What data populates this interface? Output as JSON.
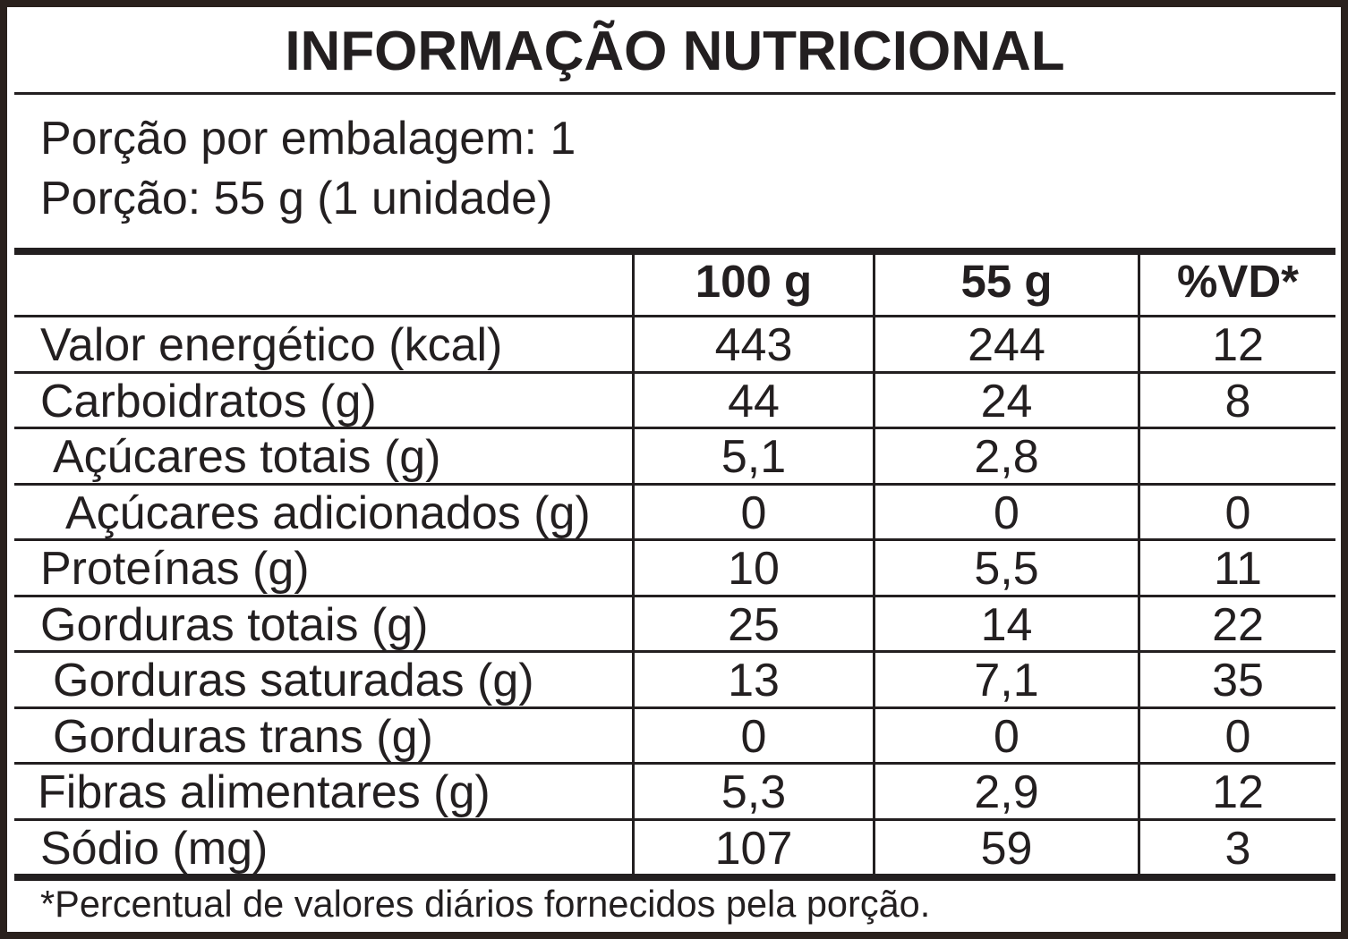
{
  "title": "INFORMAÇÃO NUTRICIONAL",
  "serving": {
    "servings_per_package": "Porção por embalagem: 1",
    "serving_size": "Porção: 55 g (1 unidade)"
  },
  "table": {
    "headers": {
      "per_100g": "100 g",
      "per_serving": "55 g",
      "daily_value": "%VD*"
    },
    "rows": [
      {
        "name": "Valor energético (kcal)",
        "per_100g": "443",
        "per_serving": "244",
        "daily_value": "12"
      },
      {
        "name": "Carboidratos (g)",
        "per_100g": "44",
        "per_serving": "24",
        "daily_value": "8"
      },
      {
        "name": "Açúcares totais (g)",
        "per_100g": "5,1",
        "per_serving": "2,8"
      },
      {
        "name": "Açúcares adicionados (g)",
        "per_100g": "0",
        "per_serving": "0",
        "daily_value": "0"
      },
      {
        "name": "Proteínas (g)",
        "per_100g": "10",
        "per_serving": "5,5",
        "daily_value": "11"
      },
      {
        "name": "Gorduras totais (g)",
        "per_100g": "25",
        "per_serving": "14",
        "daily_value": "22"
      },
      {
        "name": "Gorduras saturadas (g)",
        "per_100g": "13",
        "per_serving": "7,1",
        "daily_value": "35"
      },
      {
        "name": "Gorduras trans (g)",
        "per_100g": "0",
        "per_serving": "0",
        "daily_value": "0"
      },
      {
        "name": "Fibras alimentares (g)",
        "per_100g": "5,3",
        "per_serving": "2,9",
        "daily_value": "12"
      },
      {
        "name": "Sódio (mg)",
        "per_100g": "107",
        "per_serving": "59",
        "daily_value": "3"
      }
    ]
  },
  "footnote": "*Percentual de valores diários fornecidos pela porção.",
  "colors": {
    "ink": "#231f20",
    "border": "#2a211d",
    "background": "#ffffff"
  }
}
